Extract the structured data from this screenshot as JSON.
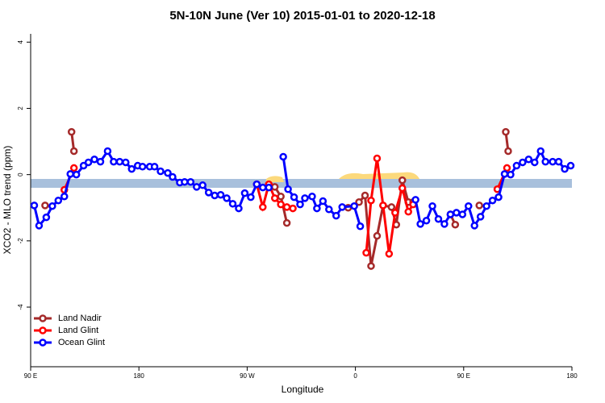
{
  "chart_data": {
    "type": "line",
    "title": "5N-10N June (Ver 10)   2015-01-01 to 2020-12-18",
    "x_label": "Longitude",
    "y_label": "XCO2 - MLO trend (ppm)",
    "xlim": [
      90,
      540
    ],
    "xticks": [
      {
        "value": 90,
        "label": "90 E"
      },
      180,
      {
        "value": 270,
        "label": "90 W"
      },
      {
        "value": 360,
        "label": "0"
      },
      {
        "value": 450,
        "label": "90 E"
      },
      {
        "value": 540,
        "label": "180"
      }
    ],
    "ylim": [
      -5.8,
      4.25
    ],
    "yticks": [
      -4,
      -2,
      0,
      2,
      4
    ],
    "legend": "bottom-left",
    "series": [
      {
        "name": "Land Nadir",
        "color": "#a52a2a",
        "x": [
          102,
          null,
          124,
          126,
          null,
          293,
          298,
          303,
          null,
          354,
          363,
          368,
          373,
          378,
          383,
          390,
          394,
          399,
          404,
          408,
          null,
          439,
          443,
          null,
          463,
          null,
          485,
          487
        ],
        "values": [
          -0.93,
          null,
          1.29,
          0.71,
          null,
          -0.37,
          -0.66,
          -1.46,
          null,
          -1.0,
          -0.83,
          -0.63,
          -2.76,
          -1.85,
          -0.93,
          -0.98,
          -1.51,
          -0.17,
          -0.83,
          -0.83,
          null,
          -1.2,
          -1.51,
          null,
          -0.93,
          null,
          1.29,
          0.71
        ]
      },
      {
        "name": "Land Glint",
        "color": "#ff0000",
        "x": [
          118,
          126,
          null,
          278,
          283,
          288,
          293,
          298,
          303,
          308,
          null,
          369,
          373,
          378,
          383,
          388,
          393,
          399,
          404,
          408,
          null,
          478,
          486
        ],
        "values": [
          -0.46,
          0.2,
          null,
          -0.29,
          -0.98,
          -0.29,
          -0.71,
          -0.9,
          -0.98,
          -1.02,
          null,
          -2.36,
          -0.78,
          0.49,
          -0.93,
          -2.39,
          -1.15,
          -0.41,
          -1.12,
          -0.9,
          null,
          -0.44,
          0.2
        ]
      },
      {
        "name": "Ocean Glint",
        "color": "#0000ff",
        "x": [
          93,
          97,
          103,
          108,
          113,
          118,
          123,
          128,
          134,
          138,
          143,
          148,
          154,
          159,
          164,
          169,
          174,
          179,
          183,
          189,
          193,
          198,
          204,
          208,
          214,
          218,
          223,
          228,
          233,
          238,
          243,
          248,
          253,
          258,
          263,
          268,
          273,
          278,
          283,
          288,
          null,
          300,
          304,
          309,
          314,
          318,
          324,
          328,
          333,
          338,
          344,
          349,
          359,
          364,
          null,
          410,
          414,
          419,
          424,
          429,
          434,
          439,
          444,
          449,
          454,
          459,
          464,
          469,
          474,
          479,
          484,
          489,
          494,
          499,
          504,
          509,
          514,
          518,
          524,
          529,
          534,
          539
        ],
        "values": [
          -0.93,
          -1.54,
          -1.29,
          -0.95,
          -0.78,
          -0.66,
          0.02,
          0,
          0.27,
          0.37,
          0.46,
          0.39,
          0.71,
          0.39,
          0.39,
          0.37,
          0.17,
          0.27,
          0.24,
          0.24,
          0.24,
          0.1,
          0.05,
          -0.07,
          -0.24,
          -0.22,
          -0.22,
          -0.37,
          -0.32,
          -0.54,
          -0.63,
          -0.61,
          -0.71,
          -0.88,
          -1.02,
          -0.56,
          -0.68,
          -0.29,
          -0.39,
          -0.39,
          null,
          0.54,
          -0.44,
          -0.68,
          -0.9,
          -0.71,
          -0.66,
          -1.02,
          -0.8,
          -1.05,
          -1.24,
          -0.98,
          -0.95,
          -1.56,
          null,
          -0.76,
          -1.49,
          -1.39,
          -0.95,
          -1.34,
          -1.49,
          -1.2,
          -1.15,
          -1.2,
          -0.95,
          -1.54,
          -1.27,
          -0.95,
          -0.78,
          -0.68,
          0.02,
          0,
          0.27,
          0.37,
          0.46,
          0.37,
          0.71,
          0.39,
          0.39,
          0.39,
          0.17,
          0.27
        ]
      }
    ]
  }
}
